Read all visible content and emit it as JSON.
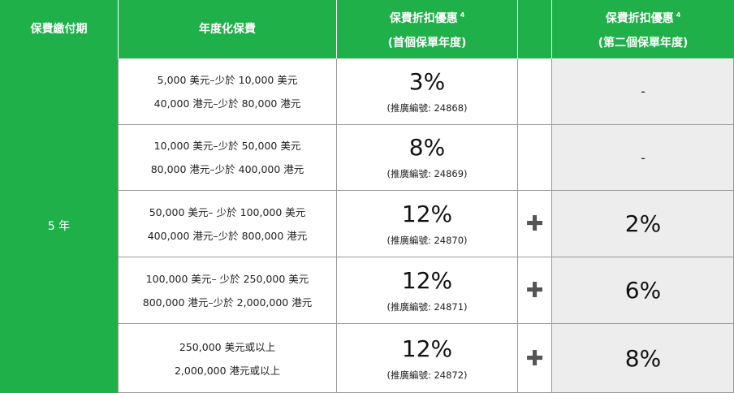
{
  "header": {
    "col1": "保費繳付期",
    "col2": "年度化保費",
    "col3_line1": "保費折扣優惠",
    "col3_sup": "4",
    "col3_line2": "(首個保單年度)",
    "col5_line1": "保費折扣優惠",
    "col5_sup": "4",
    "col5_line2": "(第二個保單年度)"
  },
  "term": "5 年",
  "rows": [
    {
      "usd": "5,000 美元–少於 10,000 美元",
      "hkd": "40,000 港元–少於 80,000 港元",
      "first_year": "3%",
      "code": "(推廣編號: 24868)",
      "plus": "",
      "second_year": "-"
    },
    {
      "usd": "10,000 美元–少於 50,000 美元",
      "hkd": "80,000 港元–少於 400,000 港元",
      "first_year": "8%",
      "code": "(推廣編號: 24869)",
      "plus": "",
      "second_year": "-"
    },
    {
      "usd": "50,000 美元– 少於 100,000 美元",
      "hkd": "400,000 港元–少於 800,000 港元",
      "first_year": "12%",
      "code": "(推廣編號: 24870)",
      "plus": "✚",
      "second_year": "2%"
    },
    {
      "usd": "100,000 美元– 少於 250,000 美元",
      "hkd": "800,000 港元–少於 2,000,000 港元",
      "first_year": "12%",
      "code": "(推廣編號: 24871)",
      "plus": "✚",
      "second_year": "6%"
    },
    {
      "usd": "250,000 美元或以上",
      "hkd": "2,000,000 港元或以上",
      "first_year": "12%",
      "code": "(推廣編號: 24872)",
      "plus": "✚",
      "second_year": "8%"
    }
  ],
  "colors": {
    "header_green": "#1fb04a",
    "second_year_bg": "#ededed"
  }
}
